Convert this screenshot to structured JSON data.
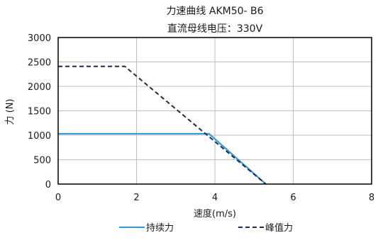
{
  "chart_data": {
    "type": "line",
    "title": "力速曲线 AKM50- B6",
    "subtitle": "直流母线电压：330V",
    "xlabel": "速度(m/s)",
    "ylabel": "力 (N)",
    "xlim": [
      0,
      8
    ],
    "ylim": [
      0,
      3000
    ],
    "xticks": [
      0,
      2,
      4,
      6,
      8
    ],
    "yticks": [
      0,
      500,
      1000,
      1500,
      2000,
      2500,
      3000
    ],
    "grid": true,
    "legend_position": "bottom",
    "series": [
      {
        "name": "持续力",
        "style": "solid",
        "color": "#2e9bd6",
        "points": [
          [
            0,
            1030
          ],
          [
            3.85,
            1030
          ],
          [
            5.3,
            0
          ]
        ]
      },
      {
        "name": "峰值力",
        "style": "dashed",
        "color": "#1f2a4d",
        "points": [
          [
            0,
            2410
          ],
          [
            1.7,
            2410
          ],
          [
            5.3,
            0
          ]
        ]
      }
    ]
  }
}
